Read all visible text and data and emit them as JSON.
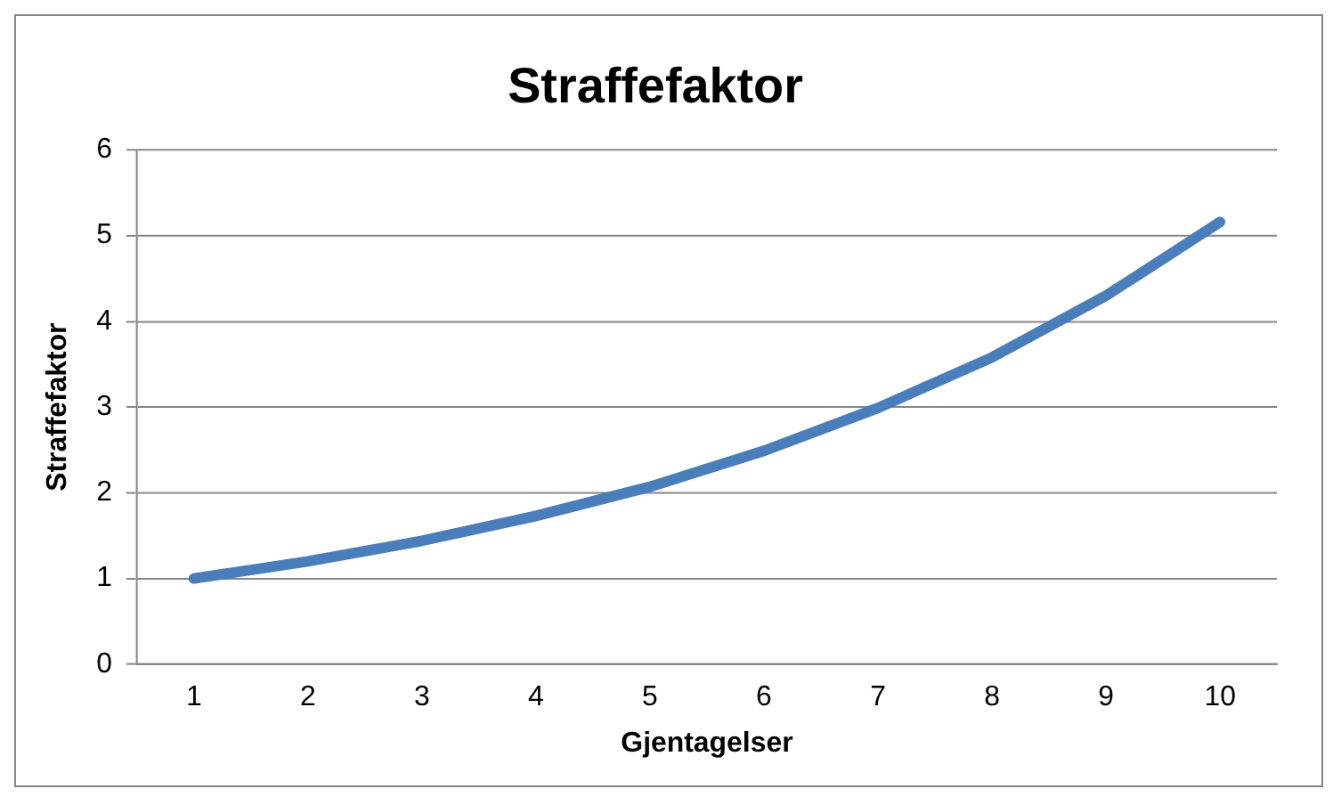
{
  "chart_data": {
    "type": "line",
    "title": "Straffefaktor",
    "xlabel": "Gjentagelser",
    "ylabel": "Straffefaktor",
    "categories": [
      "1",
      "2",
      "3",
      "4",
      "5",
      "6",
      "7",
      "8",
      "9",
      "10"
    ],
    "series": [
      {
        "color": "#4a7ebb",
        "values": [
          1,
          1.2,
          1.44,
          1.73,
          2.07,
          2.49,
          2.99,
          3.58,
          4.3,
          5.16
        ]
      }
    ],
    "ylim": [
      0,
      6
    ],
    "yticks": [
      0,
      1,
      2,
      3,
      4,
      5,
      6
    ],
    "grid": "y",
    "legend": false,
    "marker": "none",
    "line_style": "solid"
  }
}
